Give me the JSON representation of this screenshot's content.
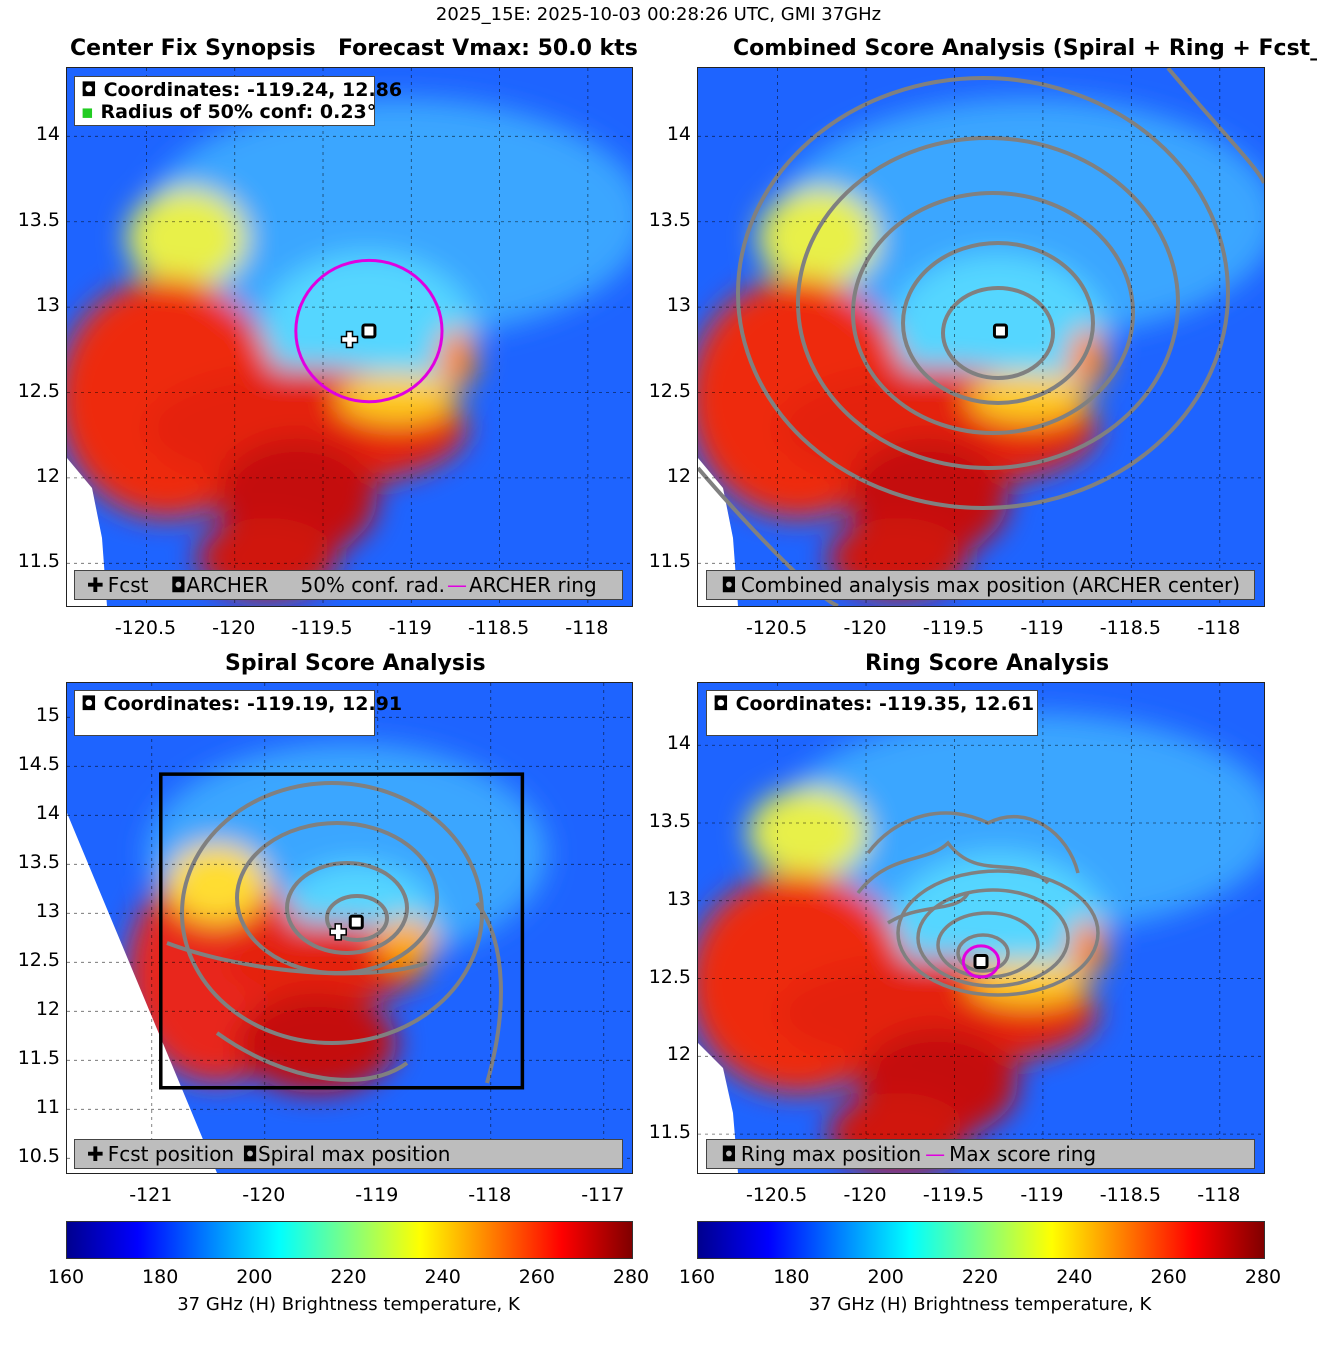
{
  "figure": {
    "suptitle": "2025_15E: 2025-10-03 00:28:26 UTC, GMI 37GHz"
  },
  "panels": {
    "synopsis": {
      "title_left": "Center Fix Synopsis",
      "title_right": "Forecast Vmax: 50.0 kts",
      "info_line1": "Coordinates: -119.24, 12.86",
      "info_line2": "Radius of 50% conf: 0.23°",
      "legend": [
        "Fcst",
        "ARCHER",
        "50% conf. rad.",
        "ARCHER ring"
      ]
    },
    "combined": {
      "title": "Combined Score Analysis (Spiral + Ring + Fcst_Pe",
      "legend": [
        "Combined analysis max position (ARCHER center)"
      ]
    },
    "spiral": {
      "title": "Spiral Score Analysis",
      "info_line1": "Coordinates: -119.19, 12.91",
      "legend": [
        "Fcst position",
        "Spiral max position"
      ]
    },
    "ring": {
      "title": "Ring Score Analysis",
      "info_line1": "Coordinates: -119.35, 12.61",
      "legend": [
        "Ring max position",
        "Max score ring"
      ]
    }
  },
  "colorbar": {
    "label": "37 GHz (H) Brightness temperature, K",
    "ticks": [
      "160",
      "180",
      "200",
      "220",
      "240",
      "260",
      "280"
    ]
  },
  "colors": {
    "ring_magenta": "#e000e0",
    "contour_gray": "#808080",
    "legend_bg": "#bdbdbd"
  },
  "chart_data": [
    {
      "type": "heatmap",
      "title": "Center Fix Synopsis",
      "xlim": [
        -120.95,
        -117.75
      ],
      "ylim": [
        11.25,
        14.4
      ],
      "xticks": [
        -120.5,
        -120,
        -119.5,
        -119,
        -118.5,
        -118
      ],
      "xtick_labels": [
        "-120.5",
        "-120",
        "-119.5",
        "-119",
        "-118.5",
        "-118"
      ],
      "yticks": [
        11.5,
        12,
        12.5,
        13,
        13.5,
        14
      ],
      "ytick_labels": [
        "11.5",
        "12",
        "12.5",
        "13",
        "13.5",
        "14"
      ],
      "archer_center": [
        -119.24,
        12.86
      ],
      "forecast_position": [
        -119.35,
        12.81
      ],
      "conf_radius_deg": 0.23,
      "forecast_vmax_kts": 50.0
    },
    {
      "type": "heatmap",
      "title": "Combined Score Analysis",
      "xlim": [
        -120.95,
        -117.75
      ],
      "ylim": [
        11.25,
        14.4
      ],
      "xticks": [
        -120.5,
        -120,
        -119.5,
        -119,
        -118.5,
        -118
      ],
      "xtick_labels": [
        "-120.5",
        "-120",
        "-119.5",
        "-119",
        "-118.5",
        "-118"
      ],
      "yticks": [
        11.5,
        12,
        12.5,
        13,
        13.5,
        14
      ],
      "ytick_labels": [
        "11.5",
        "12",
        "12.5",
        "13",
        "13.5",
        "14"
      ],
      "max_position": [
        -119.24,
        12.86
      ]
    },
    {
      "type": "heatmap",
      "title": "Spiral Score Analysis",
      "xlim": [
        -121.75,
        -116.75
      ],
      "ylim": [
        10.35,
        15.35
      ],
      "xticks": [
        -121,
        -120,
        -119,
        -118,
        -117
      ],
      "xtick_labels": [
        "-121",
        "-120",
        "-119",
        "-118",
        "-117"
      ],
      "yticks": [
        10.5,
        11,
        11.5,
        12,
        12.5,
        13,
        13.5,
        14,
        14.5,
        15
      ],
      "ytick_labels": [
        "10.5",
        "11",
        "11.5",
        "12",
        "12.5",
        "13",
        "13.5",
        "14",
        "14.5",
        "15"
      ],
      "max_position": [
        -119.19,
        12.91
      ],
      "forecast_position": [
        -119.35,
        12.81
      ],
      "search_box": {
        "x": [
          -120.92,
          -117.72
        ],
        "y": [
          11.22,
          14.42
        ]
      }
    },
    {
      "type": "heatmap",
      "title": "Ring Score Analysis",
      "xlim": [
        -120.95,
        -117.75
      ],
      "ylim": [
        11.25,
        14.4
      ],
      "xticks": [
        -120.5,
        -120,
        -119.5,
        -119,
        -118.5,
        -118
      ],
      "xtick_labels": [
        "-120.5",
        "-120",
        "-119.5",
        "-119",
        "-118.5",
        "-118"
      ],
      "yticks": [
        11.5,
        12,
        12.5,
        13,
        13.5,
        14
      ],
      "ytick_labels": [
        "11.5",
        "12",
        "12.5",
        "13",
        "13.5",
        "14"
      ],
      "max_position": [
        -119.35,
        12.61
      ],
      "ring_radius_deg": 0.1
    }
  ]
}
